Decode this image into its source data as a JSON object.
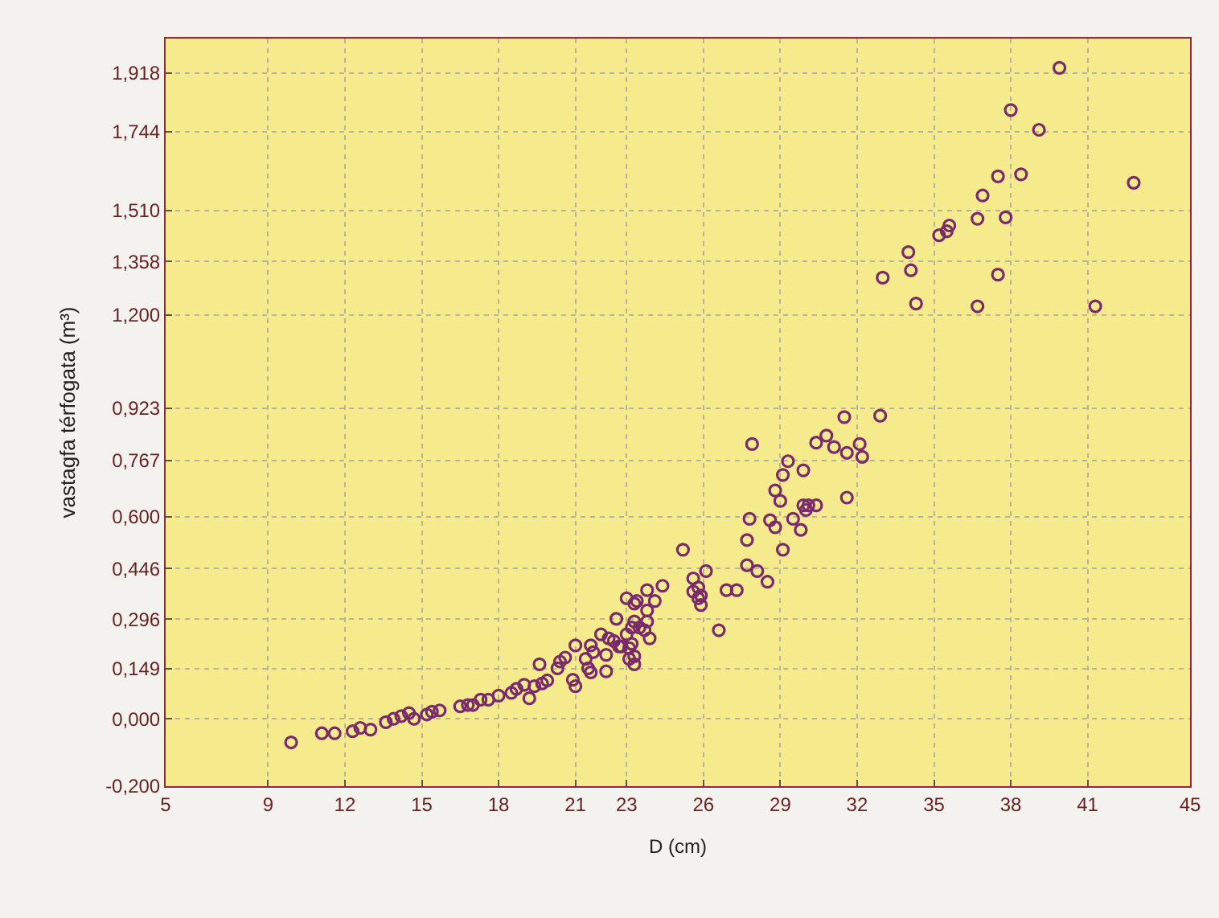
{
  "chart_data": {
    "type": "scatter",
    "xlabel": "D (cm)",
    "ylabel": "vastagfa térfogata (m³)",
    "color": "#7a2a6a",
    "marker": "circle",
    "grid": true,
    "xlim": [
      5,
      45
    ],
    "ylim": [
      -0.2,
      2.02
    ],
    "xticks": [
      5,
      9,
      12,
      15,
      18,
      21,
      23,
      26,
      29,
      32,
      35,
      38,
      41,
      45
    ],
    "yticks": [
      {
        "value": -0.2,
        "label": "-0,200"
      },
      {
        "value": 0,
        "label": "0,000"
      },
      {
        "value": 0.149,
        "label": "0,149"
      },
      {
        "value": 0.296,
        "label": "0,296"
      },
      {
        "value": 0.446,
        "label": "0,446"
      },
      {
        "value": 0.6,
        "label": "0,600"
      },
      {
        "value": 0.767,
        "label": "0,767"
      },
      {
        "value": 0.923,
        "label": "0,923"
      },
      {
        "value": 1.2,
        "label": "1,200"
      },
      {
        "value": 1.358,
        "label": "1,358"
      },
      {
        "value": 1.51,
        "label": "1,510"
      },
      {
        "value": 1.744,
        "label": "1,744"
      },
      {
        "value": 1.918,
        "label": "1,918"
      }
    ],
    "x": [
      9.9,
      11.1,
      11.6,
      12.3,
      12.6,
      13.0,
      13.6,
      13.9,
      14.2,
      14.5,
      14.7,
      15.2,
      15.4,
      15.7,
      16.5,
      16.8,
      17.0,
      17.3,
      17.6,
      18.0,
      18.5,
      18.7,
      19.0,
      19.2,
      19.4,
      19.7,
      19.9,
      19.6,
      20.3,
      20.4,
      20.6,
      20.9,
      21.0,
      21.0,
      21.4,
      21.5,
      21.6,
      21.6,
      21.7,
      22.0,
      22.2,
      22.2,
      22.3,
      22.5,
      22.6,
      22.7,
      22.8,
      23.0,
      23.0,
      23.1,
      23.1,
      23.2,
      23.2,
      23.3,
      23.3,
      23.3,
      23.3,
      23.4,
      23.5,
      23.7,
      23.8,
      23.8,
      23.8,
      23.9,
      24.1,
      24.4,
      25.2,
      25.6,
      25.6,
      25.8,
      25.8,
      25.9,
      25.9,
      26.1,
      26.6,
      26.9,
      27.3,
      27.7,
      27.7,
      27.8,
      28.1,
      28.5,
      28.6,
      28.8,
      29.1,
      29.5,
      29.8,
      29.9,
      30.0,
      30.1,
      30.4,
      28.8,
      29.0,
      29.1,
      29.3,
      29.9,
      27.9,
      30.4,
      30.8,
      31.1,
      31.6,
      31.5,
      32.1,
      32.2,
      31.6,
      32.9,
      33.0,
      39.9,
      38.0,
      39.1,
      37.5,
      38.4,
      36.9,
      36.7,
      37.8,
      42.8,
      35.6,
      35.5,
      35.2,
      34.0,
      34.1,
      37.5,
      34.3,
      36.7,
      41.3
    ],
    "values": [
      -0.07,
      -0.043,
      -0.043,
      -0.037,
      -0.027,
      -0.032,
      -0.01,
      0.0,
      0.008,
      0.017,
      0.0,
      0.013,
      0.021,
      0.025,
      0.037,
      0.041,
      0.041,
      0.057,
      0.057,
      0.069,
      0.077,
      0.089,
      0.101,
      0.061,
      0.097,
      0.105,
      0.114,
      0.162,
      0.15,
      0.17,
      0.182,
      0.116,
      0.218,
      0.097,
      0.178,
      0.15,
      0.218,
      0.138,
      0.198,
      0.251,
      0.141,
      0.19,
      0.239,
      0.231,
      0.297,
      0.215,
      0.215,
      0.251,
      0.358,
      0.21,
      0.178,
      0.271,
      0.223,
      0.186,
      0.162,
      0.289,
      0.342,
      0.35,
      0.271,
      0.263,
      0.382,
      0.322,
      0.289,
      0.239,
      0.35,
      0.395,
      0.502,
      0.417,
      0.378,
      0.39,
      0.358,
      0.366,
      0.338,
      0.439,
      0.263,
      0.382,
      0.382,
      0.456,
      0.531,
      0.594,
      0.439,
      0.407,
      0.59,
      0.569,
      0.502,
      0.594,
      0.561,
      0.634,
      0.62,
      0.634,
      0.634,
      0.678,
      0.647,
      0.724,
      0.765,
      0.738,
      0.816,
      0.82,
      0.841,
      0.807,
      0.79,
      0.896,
      0.816,
      0.778,
      0.657,
      0.9,
      1.31,
      1.933,
      1.808,
      1.749,
      1.611,
      1.617,
      1.554,
      1.485,
      1.489,
      1.592,
      1.465,
      1.448,
      1.436,
      1.386,
      1.332,
      1.319,
      1.233,
      1.225,
      1.225
    ]
  }
}
